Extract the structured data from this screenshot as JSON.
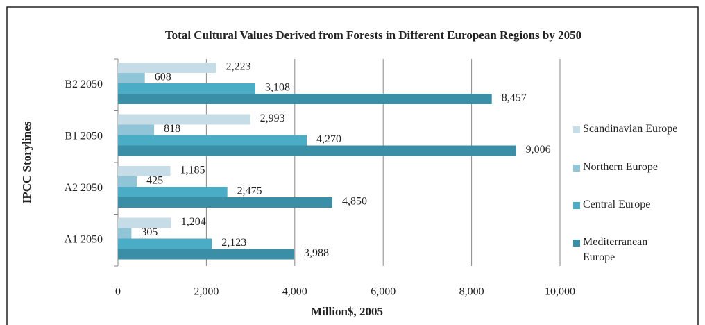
{
  "chart_data": {
    "type": "barh",
    "title": "Total Cultural Values Derived from Forests in Different European Regions by 2050",
    "xlabel": "Million$, 2005",
    "ylabel": "IPCC Storylines",
    "categories": [
      "A1 2050",
      "A2 2050",
      "B1 2050",
      "B2 2050"
    ],
    "series": [
      {
        "name": "Scandinavian Europe",
        "color": "#c6dde8",
        "values": [
          1204,
          1185,
          2993,
          2223
        ],
        "value_labels": [
          "1,204",
          "1,185",
          "2,993",
          "2,223"
        ]
      },
      {
        "name": "Northern Europe",
        "color": "#8fc5d6",
        "values": [
          305,
          425,
          818,
          608
        ],
        "value_labels": [
          "305",
          "425",
          "818",
          "608"
        ]
      },
      {
        "name": "Central Europe",
        "color": "#4bacc6",
        "values": [
          2123,
          2475,
          4270,
          3108
        ],
        "value_labels": [
          "2,123",
          "2,475",
          "4,270",
          "3,108"
        ]
      },
      {
        "name": "Mediterranean Europe",
        "color": "#3a8ea6",
        "values": [
          3988,
          4850,
          9006,
          8457
        ],
        "value_labels": [
          "3,988",
          "4,850",
          "9,006",
          "8,457"
        ]
      }
    ],
    "xlim": [
      0,
      10000
    ],
    "xticks": [
      0,
      {
        "value": 2000,
        "label": "2,000"
      },
      {
        "value": 4000,
        "label": "4,000"
      },
      {
        "value": 6000,
        "label": "6,000"
      },
      {
        "value": 8000,
        "label": "8,000"
      },
      {
        "value": 10000,
        "label": "10,000"
      }
    ],
    "grid": true,
    "legend": "right"
  }
}
